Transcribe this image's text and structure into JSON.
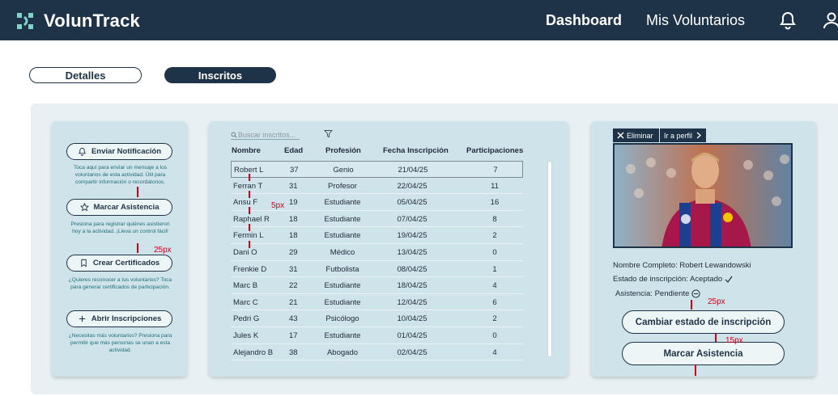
{
  "app": {
    "name": "VolunTrack"
  },
  "nav": {
    "dashboard": "Dashboard",
    "volunteers": "Mis Voluntarios",
    "bell_icon": "bell-icon",
    "user_icon": "user-icon"
  },
  "tabs": {
    "details": "Detalles",
    "enrolled": "Inscritos"
  },
  "actions": [
    {
      "label": "Enviar Notificación",
      "icon": "bell-icon",
      "help": "Toca aquí para enviar un mensaje a los voluntarios de esta actividad. Útil para compartir información o recordatorios."
    },
    {
      "label": "Marcar Asistencia",
      "icon": "star-icon",
      "help": "Presiona para registrar quiénes asistieron hoy a la actividad. ¡Lleva un control fácil!"
    },
    {
      "label": "Crear Certificados",
      "icon": "bookmark-icon",
      "help": "¿Quieres reconocer a tus voluntarios? Toca para generar certificados de participación."
    },
    {
      "label": "Abrir Inscripciones",
      "icon": "plus-icon",
      "help": "¿Necesitas más voluntarios? Presiona para permitir que más personas se unan a esta actividad."
    }
  ],
  "table": {
    "search_placeholder": "Buscar inscritos...",
    "headers": [
      "Nombre",
      "Edad",
      "Profesión",
      "Fecha Inscripción",
      "Participaciones"
    ],
    "rows": [
      [
        "Robert L",
        "37",
        "Genio",
        "21/04/25",
        "7"
      ],
      [
        "Ferran T",
        "31",
        "Profesor",
        "22/04/25",
        "11"
      ],
      [
        "Ansu F",
        "19",
        "Estudiante",
        "05/04/25",
        "16"
      ],
      [
        "Raphael R",
        "18",
        "Estudiante",
        "07/04/25",
        "8"
      ],
      [
        "Fermin L",
        "18",
        "Estudiante",
        "19/04/25",
        "2"
      ],
      [
        "Dani O",
        "29",
        "Médico",
        "13/04/25",
        "0"
      ],
      [
        "Frenkie D",
        "31",
        "Futbolista",
        "08/04/25",
        "1"
      ],
      [
        "Marc B",
        "22",
        "Estudiante",
        "18/04/25",
        "4"
      ],
      [
        "Marc C",
        "21",
        "Estudiante",
        "12/04/25",
        "6"
      ],
      [
        "Pedri G",
        "43",
        "Psicólogo",
        "10/04/25",
        "2"
      ],
      [
        "Jules K",
        "17",
        "Estudiante",
        "01/04/25",
        "0"
      ],
      [
        "Alejandro B",
        "38",
        "Abogado",
        "02/04/25",
        "4"
      ]
    ]
  },
  "profile": {
    "delete": "Eliminar",
    "go_profile": "Ir a perfil",
    "full_name": "Nombre Completo: Robert Lewandowski",
    "status": "Estado de inscripción: Aceptado",
    "attendance": "Asistencia: Pendiente",
    "change_status": "Cambiar estado de inscripción",
    "mark_attendance": "Marcar Asistencia"
  },
  "annotations": {
    "a1": "5px",
    "a2": "25px",
    "a3": "25px",
    "a4": "15px"
  },
  "colors": {
    "navy": "#1f3348",
    "card": "#cfe3ea",
    "annotation": "#d4001a"
  }
}
